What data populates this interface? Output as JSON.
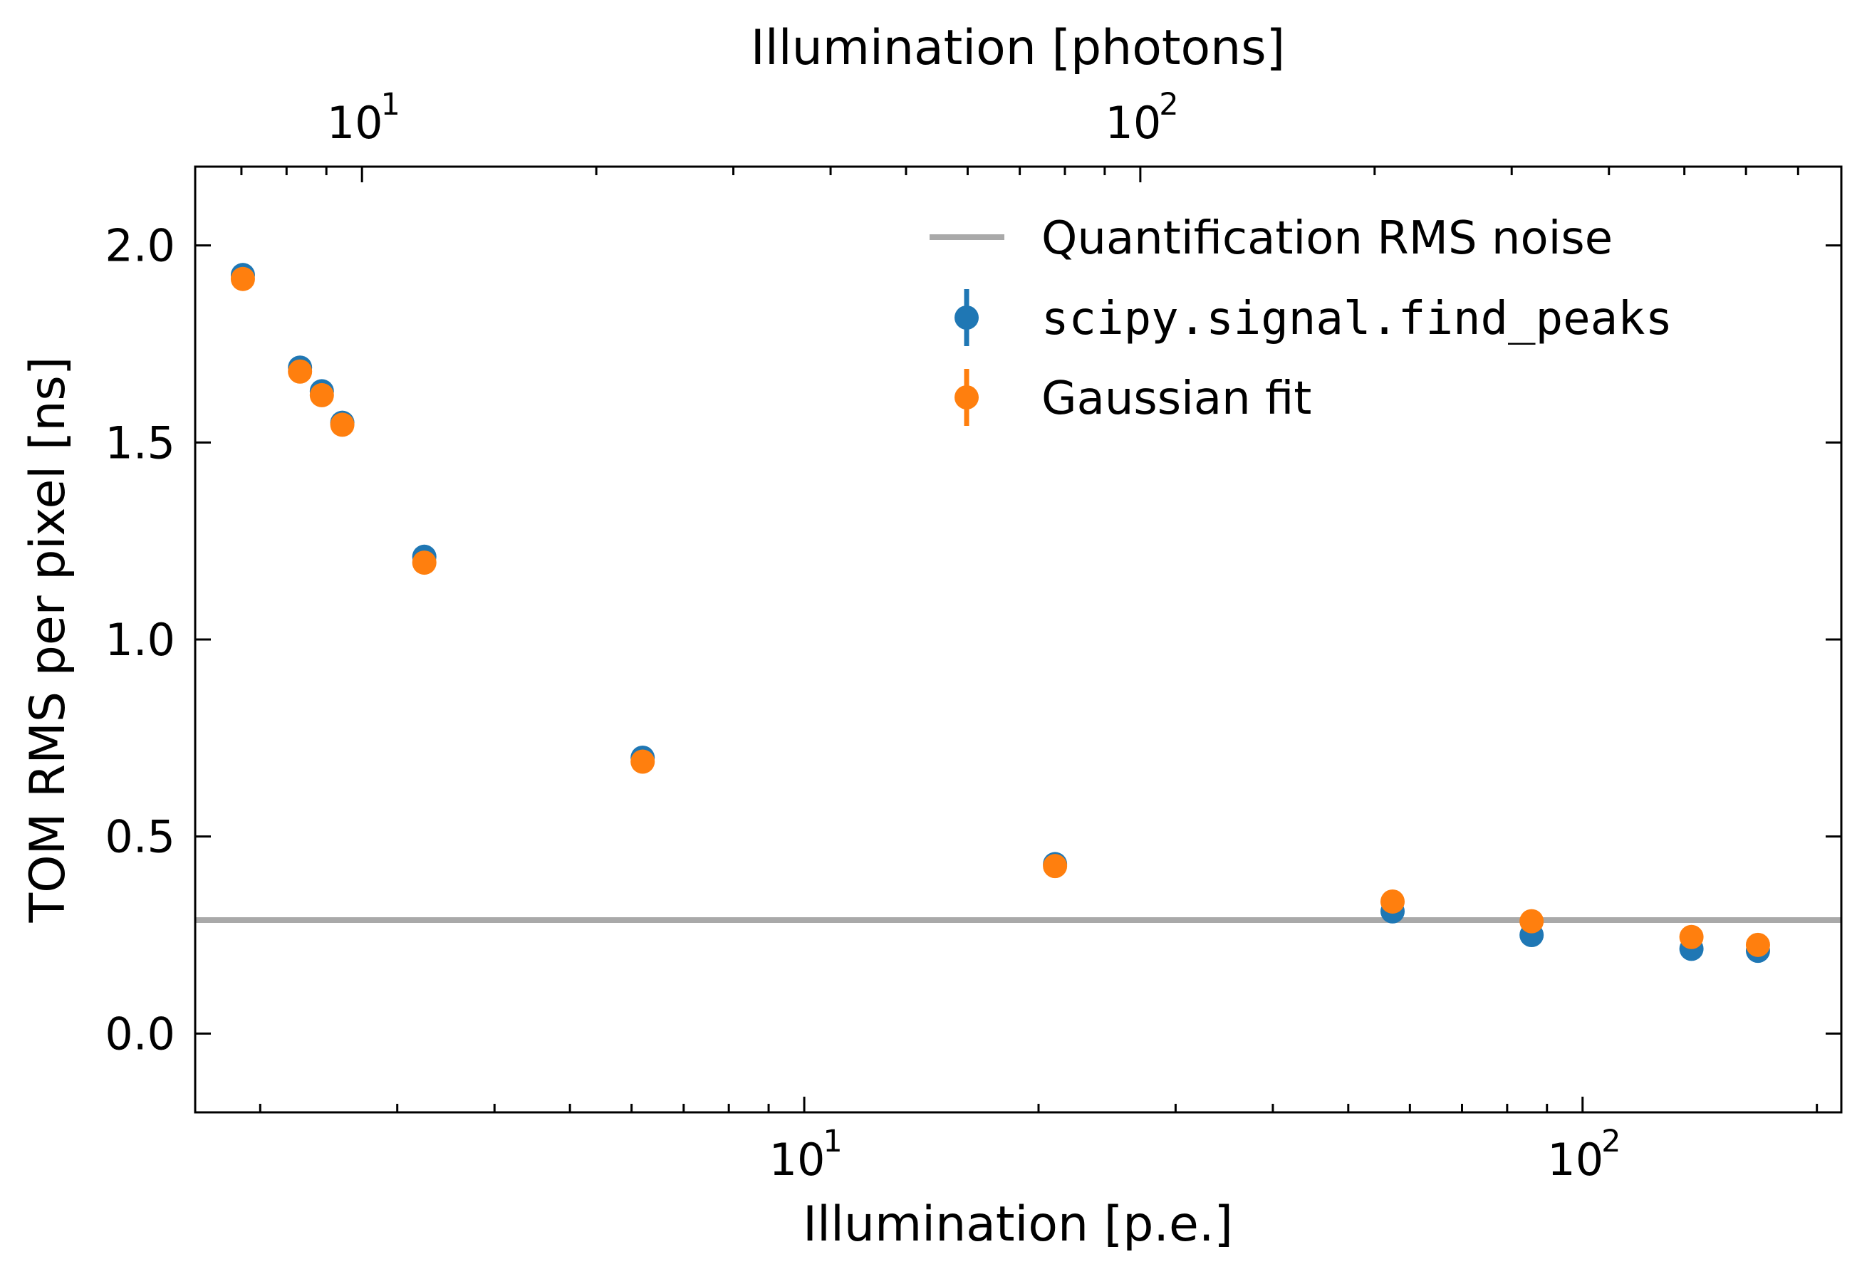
{
  "chart_data": {
    "type": "scatter",
    "xlabel": "Illumination [p.e.]",
    "ylabel": "TOM RMS per pixel [ns]",
    "top_axis_label": "Illumination [photons]",
    "xscale": "log",
    "xlim": [
      1.65,
      215
    ],
    "ylim": [
      -0.2,
      2.2
    ],
    "yticks": [
      0.0,
      0.5,
      1.0,
      1.5,
      2.0
    ],
    "ytick_labels": [
      "0.0",
      "0.5",
      "1.0",
      "1.5",
      "2.0"
    ],
    "xticks_major": [
      10,
      100
    ],
    "xtick_labels": [
      "10",
      "10"
    ],
    "xtick_exponents": [
      "1",
      "2"
    ],
    "top_axis_photons_per_pe": 3.7,
    "top_xticks_major": [
      10,
      100
    ],
    "top_xtick_labels": [
      "10",
      "10"
    ],
    "top_xtick_exponents": [
      "1",
      "2"
    ],
    "grid": false,
    "legend_position": "top-right",
    "hline": {
      "name": "Quantification RMS noise",
      "y": 0.288,
      "color": "#a9a9a9"
    },
    "series": [
      {
        "name": "scipy.signal.find_peaks",
        "color": "#1f77b4",
        "x": [
          1.9,
          2.25,
          2.4,
          2.55,
          3.25,
          6.2,
          21.0,
          57.0,
          86.0,
          138.0,
          168.0
        ],
        "y": [
          1.925,
          1.69,
          1.63,
          1.55,
          1.21,
          0.7,
          0.43,
          0.31,
          0.25,
          0.215,
          0.21
        ]
      },
      {
        "name": "Gaussian fit",
        "color": "#ff7f0e",
        "x": [
          1.9,
          2.25,
          2.4,
          2.55,
          3.25,
          6.2,
          21.0,
          57.0,
          86.0,
          138.0,
          168.0
        ],
        "y": [
          1.915,
          1.68,
          1.62,
          1.545,
          1.195,
          0.69,
          0.425,
          0.335,
          0.285,
          0.245,
          0.225
        ]
      }
    ]
  }
}
